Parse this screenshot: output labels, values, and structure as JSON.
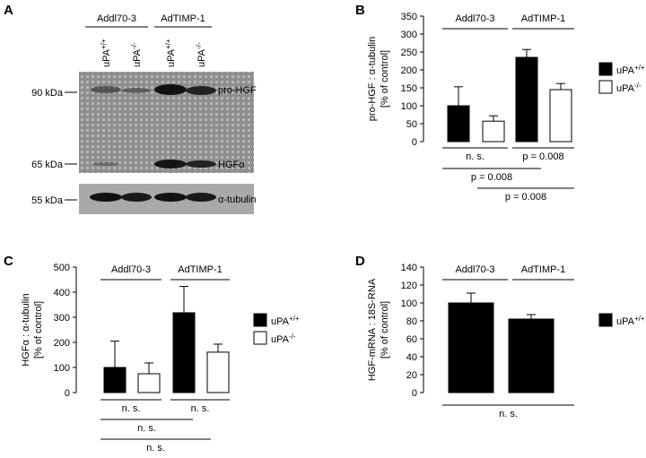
{
  "blot": {
    "panel": "A",
    "groups": [
      "Addl70-3",
      "AdTIMP-1"
    ],
    "lanes": [
      {
        "name": "uPA",
        "superscript": "+/+"
      },
      {
        "name": "uPA",
        "superscript": "-/-"
      },
      {
        "name": "uPA",
        "superscript": "+/+"
      },
      {
        "name": "uPA",
        "superscript": "-/-"
      }
    ],
    "markers": [
      "90 kDa",
      "65 kDa",
      "55 kDa"
    ],
    "bands": [
      "pro-HGF",
      "HGFα",
      "α-tubulin"
    ]
  },
  "chart_data": [
    {
      "type": "bar",
      "panel": "B",
      "y_label": "pro-HGF : α-tubulin",
      "y_label_unit": "[% of control]",
      "categories": [
        "Addl70-3",
        "AdTIMP-1"
      ],
      "series": [
        {
          "name": "uPA",
          "superscript": "+/+",
          "color": "#000000",
          "values": [
            100,
            235
          ],
          "errors": [
            53,
            22
          ]
        },
        {
          "name": "uPA",
          "superscript": "-/-",
          "color": "#ffffff",
          "values": [
            57,
            145
          ],
          "errors": [
            15,
            17
          ]
        }
      ],
      "ylim": [
        0,
        350
      ],
      "yticks": [
        0,
        50,
        100,
        150,
        200,
        250,
        300,
        350
      ],
      "comparisons": [
        "n. s.",
        "p = 0.008",
        "p = 0.008",
        "p = 0.008"
      ]
    },
    {
      "type": "bar",
      "panel": "C",
      "y_label": "HGFα : α-tubulin",
      "y_label_unit": "[% of control]",
      "categories": [
        "Addl70-3",
        "AdTIMP-1"
      ],
      "series": [
        {
          "name": "uPA",
          "superscript": "+/+",
          "color": "#000000",
          "values": [
            100,
            318
          ],
          "errors": [
            105,
            105
          ]
        },
        {
          "name": "uPA",
          "superscript": "-/-",
          "color": "#ffffff",
          "values": [
            75,
            161
          ],
          "errors": [
            43,
            32
          ]
        }
      ],
      "ylim": [
        0,
        500
      ],
      "yticks": [
        0,
        100,
        200,
        300,
        400,
        500
      ],
      "comparisons": [
        "n. s.",
        "n. s.",
        "n. s.",
        "n. s."
      ]
    },
    {
      "type": "bar",
      "panel": "D",
      "y_label": "HGF-mRNA : 18S-RNA",
      "y_label_unit": "[% of control]",
      "categories": [
        "Addl70-3",
        "AdTIMP-1"
      ],
      "series": [
        {
          "name": "uPA",
          "superscript": "+/+",
          "color": "#000000",
          "values": [
            100,
            82
          ],
          "errors": [
            11,
            5
          ]
        }
      ],
      "ylim": [
        0,
        140
      ],
      "yticks": [
        0,
        20,
        40,
        60,
        80,
        100,
        120,
        140
      ],
      "comparisons": [
        "n. s."
      ]
    }
  ]
}
